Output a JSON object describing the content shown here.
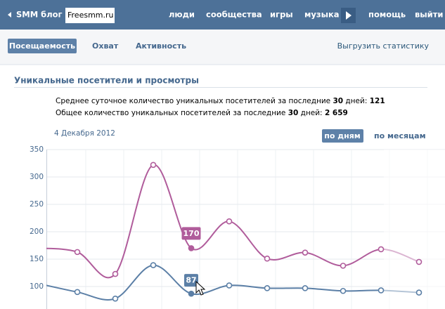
{
  "top_bar": {
    "back": "SMM блог",
    "search": "Freesmm.ru",
    "nav": [
      "люди",
      "сообщества",
      "игры",
      "музыка",
      "помощь",
      "выйти"
    ]
  },
  "tabs": {
    "items": [
      "Посещаемость",
      "Охват",
      "Активность"
    ],
    "export": "Выгрузить статистику"
  },
  "section": {
    "title": "Уникальные посетители и просмотры",
    "line1": [
      "Среднее суточное количество уникальных посетителей за последние ",
      "30",
      " дней: ",
      "121"
    ],
    "line2": [
      "Общее количество уникальных посетителей за последние ",
      "30",
      " дней: ",
      "2 659"
    ],
    "date": "4 Декабря 2012",
    "periods": [
      "по дням",
      "по месяцам"
    ]
  },
  "chart_data": {
    "type": "line",
    "categories": [
      null,
      null,
      null,
      null,
      null,
      null,
      null,
      null,
      null,
      null,
      null
    ],
    "series": [
      {
        "color": "#b05c9b",
        "values": [
          170,
          163,
          123,
          322,
          170,
          219,
          151,
          162,
          138,
          168,
          145
        ]
      },
      {
        "color": "#5b7fa6",
        "values": [
          105,
          90,
          78,
          139,
          87,
          102,
          97,
          97,
          92,
          93,
          89
        ]
      }
    ],
    "ylim": [
      59,
      350
    ],
    "yticks": [
      100,
      150,
      200,
      250,
      300,
      350
    ],
    "grid": true
  }
}
